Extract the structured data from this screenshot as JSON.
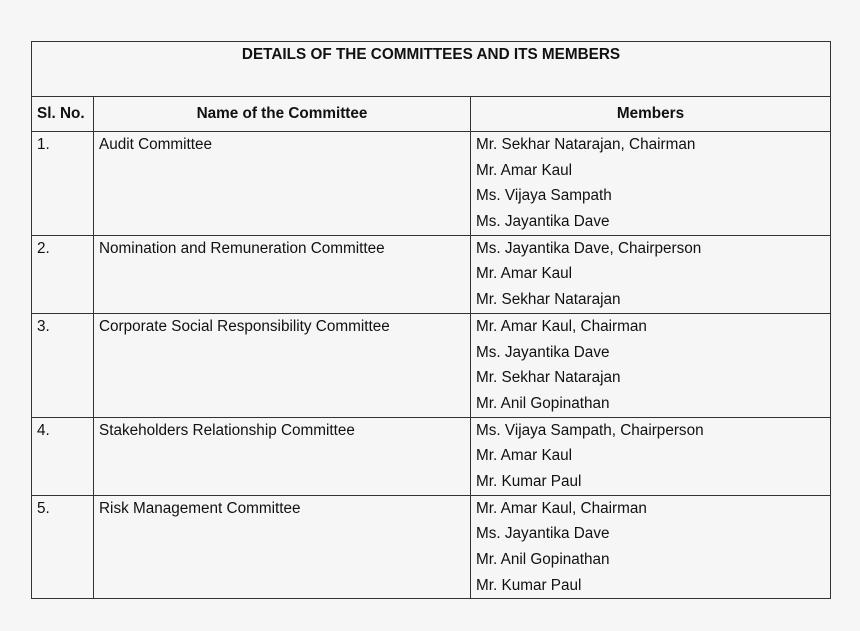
{
  "title": "DETAILS OF THE COMMITTEES AND ITS MEMBERS",
  "headers": {
    "sl": "Sl. No.",
    "name": "Name of the Committee",
    "members": "Members"
  },
  "rows": [
    {
      "sl": "1.",
      "name": "Audit Committee",
      "members": [
        "Mr. Sekhar Natarajan, Chairman",
        "Mr. Amar Kaul",
        "Ms. Vijaya Sampath",
        "Ms. Jayantika Dave"
      ]
    },
    {
      "sl": "2.",
      "name": "Nomination and Remuneration Committee",
      "members": [
        "Ms. Jayantika Dave, Chairperson",
        "Mr. Amar Kaul",
        "Mr. Sekhar Natarajan"
      ]
    },
    {
      "sl": "3.",
      "name": "Corporate Social Responsibility Committee",
      "members": [
        "Mr. Amar Kaul, Chairman",
        "Ms. Jayantika Dave",
        "Mr. Sekhar Natarajan",
        "Mr. Anil Gopinathan"
      ]
    },
    {
      "sl": "4.",
      "name": "Stakeholders Relationship Committee",
      "members": [
        "Ms. Vijaya Sampath, Chairperson",
        "Mr. Amar Kaul",
        "Mr. Kumar Paul"
      ]
    },
    {
      "sl": "5.",
      "name": "Risk Management Committee",
      "members": [
        "Mr. Amar Kaul, Chairman",
        "Ms. Jayantika Dave",
        "Mr. Anil Gopinathan",
        "Mr. Kumar Paul"
      ]
    }
  ]
}
